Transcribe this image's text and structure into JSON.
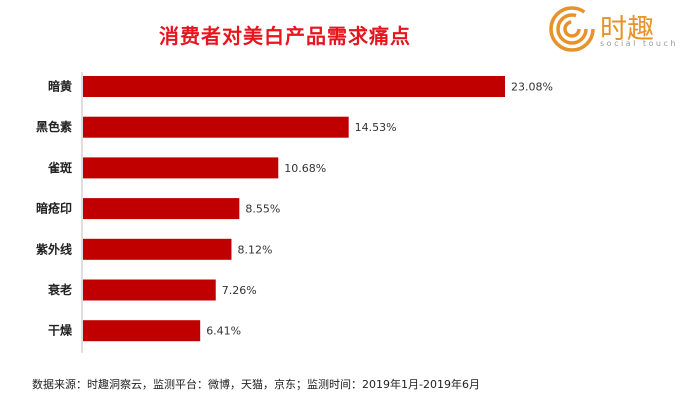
{
  "chart_data": {
    "type": "bar",
    "orientation": "horizontal",
    "title": "消费者对美白产品需求痛点",
    "categories": [
      "暗黄",
      "黑色素",
      "雀斑",
      "暗疮印",
      "紫外线",
      "衰老",
      "干燥"
    ],
    "values": [
      23.08,
      14.53,
      10.68,
      8.55,
      8.12,
      7.26,
      6.41
    ],
    "value_labels": [
      "23.08%",
      "14.53%",
      "10.68%",
      "8.55%",
      "8.12%",
      "7.26%",
      "6.41%"
    ],
    "bar_color": "#c00000",
    "xlim": [
      0,
      23.08
    ],
    "grid": false,
    "legend": "none"
  },
  "logo": {
    "name": "时趣",
    "tagline": "social touch",
    "color": "#e7932b"
  },
  "source": "数据来源：时趣洞察云，监测平台：微博，天猫，京东；监测时间：2019年1月-2019年6月"
}
